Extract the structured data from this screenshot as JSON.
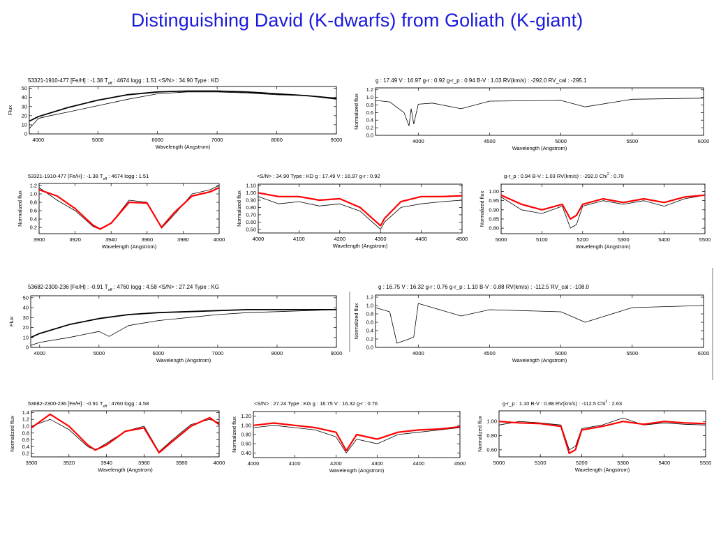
{
  "slide": {
    "title": "Distinguishing David (K-dwarfs) from Goliath (K-giant)"
  },
  "colors": {
    "title": "#1a1adc",
    "model": "#ff0000",
    "observed": "#000000"
  },
  "chart_data": [
    {
      "id": "s1-flux",
      "type": "line",
      "title": "53321-1910-477  [Fe/H] : -1.38  T",
      "title_sub": "eff",
      "title_tail": " : 4674  logg : 1.51  <S/N> : 34.90  Type : KD",
      "xlabel": "Wavelength (Angstrom)",
      "ylabel": "Flux",
      "xlim": [
        3850,
        9000
      ],
      "ylim": [
        0,
        52
      ],
      "xticks": [
        4000,
        5000,
        6000,
        7000,
        8000,
        9000
      ],
      "yticks": [
        0,
        10,
        20,
        30,
        40,
        50
      ],
      "series": [
        {
          "style": "observed",
          "x": [
            3850,
            3950,
            4000,
            4200,
            4500,
            5000,
            5500,
            6000,
            6500,
            7000,
            7500,
            8000,
            8500,
            9000
          ],
          "y": [
            6,
            13,
            17,
            20,
            24,
            31,
            38,
            44,
            46,
            46,
            45,
            43,
            42,
            38
          ]
        },
        {
          "style": "fit",
          "x": [
            3850,
            4000,
            4500,
            5000,
            5500,
            6000,
            6500,
            7000,
            7500,
            8000,
            8500,
            9000
          ],
          "y": [
            14,
            19,
            29,
            37,
            43,
            46,
            47,
            47,
            46,
            44,
            42,
            39
          ]
        }
      ]
    },
    {
      "id": "s1-norm",
      "type": "line",
      "title": "g : 17.49  V : 16.97  g-r : 0.92  g-r_p : 0.94  B-V : 1.03  RV(km/s) : -292.0  RV_cal : -295.1",
      "xlabel": "Wavelength (Angstrom)",
      "ylabel": "Normalized flux",
      "xlim": [
        3700,
        6000
      ],
      "ylim": [
        0,
        1.25
      ],
      "xticks": [
        4000,
        4500,
        5000,
        5500,
        6000
      ],
      "yticks": [
        0.0,
        0.2,
        0.4,
        0.6,
        0.8,
        1.0,
        1.2
      ],
      "series": [
        {
          "style": "observed",
          "x": [
            3700,
            3800,
            3900,
            3935,
            3950,
            3968,
            4000,
            4100,
            4300,
            4500,
            5000,
            5170,
            5500,
            6000
          ],
          "y": [
            0.92,
            0.88,
            0.6,
            0.25,
            0.7,
            0.3,
            0.82,
            0.85,
            0.7,
            0.9,
            0.92,
            0.75,
            0.95,
            0.98
          ]
        }
      ]
    },
    {
      "id": "s1-hk",
      "type": "line",
      "title": "53321-1910-477  [Fe/H] : -1.38  T",
      "title_sub": "eff",
      "title_tail": " : 4674  logg : 1.51",
      "xlabel": "Wavelength (Angstrom)",
      "ylabel": "Normalized flux",
      "xlim": [
        3900,
        4000
      ],
      "ylim": [
        0.05,
        1.25
      ],
      "xticks": [
        3900,
        3920,
        3940,
        3960,
        3980,
        4000
      ],
      "yticks": [
        0.2,
        0.4,
        0.6,
        0.8,
        1.0,
        1.2
      ],
      "series": [
        {
          "style": "observed",
          "x": [
            3900,
            3910,
            3920,
            3930,
            3934,
            3940,
            3950,
            3960,
            3968,
            3975,
            3985,
            3995,
            4000
          ],
          "y": [
            1.15,
            0.85,
            0.6,
            0.22,
            0.15,
            0.3,
            0.85,
            0.8,
            0.18,
            0.5,
            1.0,
            1.1,
            1.2
          ]
        },
        {
          "style": "model",
          "x": [
            3900,
            3910,
            3920,
            3930,
            3934,
            3940,
            3950,
            3960,
            3968,
            3975,
            3985,
            3995,
            4000
          ],
          "y": [
            1.1,
            0.95,
            0.65,
            0.25,
            0.16,
            0.3,
            0.8,
            0.78,
            0.2,
            0.55,
            0.95,
            1.05,
            1.15
          ]
        }
      ]
    },
    {
      "id": "s1-gband",
      "type": "line",
      "title": "<S/N> : 34.90  Type : KD  g : 17.49  V : 16.97  g-r : 0.92",
      "xlabel": "Wavelength (Angstrom)",
      "ylabel": "Normalized flux",
      "xlim": [
        4000,
        4500
      ],
      "ylim": [
        0.45,
        1.12
      ],
      "xticks": [
        4000,
        4100,
        4200,
        4300,
        4400,
        4500
      ],
      "yticks": [
        0.5,
        0.6,
        0.7,
        0.8,
        0.9,
        1.0,
        1.1
      ],
      "series": [
        {
          "style": "observed",
          "x": [
            4000,
            4050,
            4100,
            4150,
            4200,
            4250,
            4300,
            4310,
            4350,
            4400,
            4450,
            4500
          ],
          "y": [
            0.95,
            0.85,
            0.88,
            0.82,
            0.85,
            0.75,
            0.5,
            0.6,
            0.8,
            0.85,
            0.88,
            0.9
          ]
        },
        {
          "style": "model",
          "x": [
            4000,
            4050,
            4100,
            4150,
            4200,
            4250,
            4300,
            4310,
            4350,
            4400,
            4450,
            4500
          ],
          "y": [
            1.0,
            0.95,
            0.95,
            0.9,
            0.92,
            0.8,
            0.55,
            0.65,
            0.88,
            0.95,
            0.95,
            0.96
          ]
        }
      ]
    },
    {
      "id": "s1-mgb",
      "type": "line",
      "title": "g-r_p : 0.94  B-V : 1.03  RV(km/s) : -292.0  Chi",
      "title_sup": "2",
      "title_tail": " : 0.70",
      "xlabel": "Wavelength (Angstrom)",
      "ylabel": "Normalized flux",
      "xlim": [
        5000,
        5500
      ],
      "ylim": [
        0.77,
        1.04
      ],
      "xticks": [
        5000,
        5100,
        5200,
        5300,
        5400,
        5500
      ],
      "yticks": [
        0.8,
        0.85,
        0.9,
        0.95,
        1.0
      ],
      "series": [
        {
          "style": "observed",
          "x": [
            5000,
            5050,
            5100,
            5150,
            5170,
            5185,
            5200,
            5250,
            5300,
            5350,
            5400,
            5450,
            5500
          ],
          "y": [
            0.97,
            0.9,
            0.88,
            0.92,
            0.8,
            0.82,
            0.92,
            0.95,
            0.93,
            0.95,
            0.92,
            0.96,
            0.98
          ]
        },
        {
          "style": "model",
          "x": [
            5000,
            5050,
            5100,
            5150,
            5170,
            5185,
            5200,
            5250,
            5300,
            5350,
            5400,
            5450,
            5500
          ],
          "y": [
            0.98,
            0.93,
            0.9,
            0.93,
            0.85,
            0.87,
            0.93,
            0.96,
            0.94,
            0.96,
            0.94,
            0.97,
            0.98
          ]
        }
      ]
    },
    {
      "id": "s2-flux",
      "type": "line",
      "title": "53682-2300-236  [Fe/H] : -0.91  T",
      "title_sub": "eff",
      "title_tail": " : 4760  logg : 4.58  <S/N> : 27.24  Type : KG",
      "xlabel": "Wavelength (Angstrom)",
      "ylabel": "Flux",
      "xlim": [
        3850,
        9000
      ],
      "ylim": [
        0,
        52
      ],
      "xticks": [
        4000,
        5000,
        6000,
        7000,
        8000,
        9000
      ],
      "yticks": [
        0,
        10,
        20,
        30,
        40,
        50
      ],
      "series": [
        {
          "style": "observed",
          "x": [
            3850,
            4000,
            4500,
            5000,
            5170,
            5500,
            6000,
            6500,
            7000,
            7500,
            8000,
            8500,
            9000
          ],
          "y": [
            2,
            5,
            10,
            16,
            11,
            22,
            27,
            30,
            33,
            35,
            36,
            37,
            38
          ]
        },
        {
          "style": "fit",
          "x": [
            3850,
            4000,
            4500,
            5000,
            5500,
            6000,
            6500,
            7000,
            7500,
            8000,
            8500,
            9000
          ],
          "y": [
            10,
            14,
            23,
            29,
            33,
            35,
            36,
            37,
            38,
            38,
            38,
            38
          ]
        }
      ]
    },
    {
      "id": "s2-norm",
      "type": "line",
      "title": "g : 16.75  V : 16.32  g-r : 0.76  g-r_p : 1.10  B-V : 0.88  RV(km/s) : -112.5  RV_cal : -108.0",
      "xlabel": "Wavelength (Angstrom)",
      "ylabel": "Normalized flux",
      "xlim": [
        3700,
        6000
      ],
      "ylim": [
        0,
        1.25
      ],
      "xticks": [
        4000,
        4500,
        5000,
        5500,
        6000
      ],
      "yticks": [
        0.0,
        0.2,
        0.4,
        0.6,
        0.8,
        1.0,
        1.2
      ],
      "series": [
        {
          "style": "observed",
          "x": [
            3700,
            3800,
            3850,
            3935,
            3968,
            4000,
            4100,
            4300,
            4500,
            5000,
            5170,
            5500,
            6000
          ],
          "y": [
            0.95,
            0.85,
            0.1,
            0.2,
            0.25,
            1.05,
            0.95,
            0.75,
            0.9,
            0.85,
            0.6,
            0.95,
            1.0
          ]
        }
      ]
    },
    {
      "id": "s2-hk",
      "type": "line",
      "title": "53682-2300-236  [Fe/H] : -0.91  T",
      "title_sub": "eff",
      "title_tail": " : 4760  logg : 4.58",
      "xlabel": "Wavelength (Angstrom)",
      "ylabel": "Normalized flux",
      "xlim": [
        3900,
        4000
      ],
      "ylim": [
        0.1,
        1.45
      ],
      "xticks": [
        3900,
        3920,
        3940,
        3960,
        3980,
        4000
      ],
      "yticks": [
        0.2,
        0.4,
        0.6,
        0.8,
        1.0,
        1.2,
        1.4
      ],
      "series": [
        {
          "style": "observed",
          "x": [
            3900,
            3910,
            3920,
            3930,
            3934,
            3940,
            3950,
            3960,
            3968,
            3975,
            3985,
            3995,
            4000
          ],
          "y": [
            1.0,
            1.2,
            0.9,
            0.4,
            0.3,
            0.5,
            0.85,
            1.0,
            0.25,
            0.6,
            1.05,
            1.2,
            1.1
          ]
        },
        {
          "style": "model",
          "x": [
            3900,
            3910,
            3920,
            3930,
            3934,
            3940,
            3950,
            3960,
            3968,
            3975,
            3985,
            3995,
            4000
          ],
          "y": [
            0.95,
            1.35,
            1.0,
            0.45,
            0.3,
            0.45,
            0.85,
            0.95,
            0.22,
            0.55,
            1.0,
            1.25,
            1.05
          ]
        }
      ]
    },
    {
      "id": "s2-gband",
      "type": "line",
      "title": "<S/N> : 27.24  Type : KG  g : 16.75  V : 16.32  g-r : 0.76",
      "xlabel": "Wavelength (Angstrom)",
      "ylabel": "Normalized flux",
      "xlim": [
        4000,
        4500
      ],
      "ylim": [
        0.3,
        1.3
      ],
      "xticks": [
        4000,
        4100,
        4200,
        4300,
        4400,
        4500
      ],
      "yticks": [
        0.4,
        0.6,
        0.8,
        1.0,
        1.2
      ],
      "series": [
        {
          "style": "observed",
          "x": [
            4000,
            4050,
            4100,
            4150,
            4200,
            4225,
            4250,
            4300,
            4350,
            4400,
            4450,
            4500
          ],
          "y": [
            0.95,
            1.0,
            0.95,
            0.9,
            0.75,
            0.4,
            0.7,
            0.6,
            0.8,
            0.85,
            0.9,
            0.95
          ]
        },
        {
          "style": "model",
          "x": [
            4000,
            4050,
            4100,
            4150,
            4200,
            4225,
            4250,
            4300,
            4350,
            4400,
            4450,
            4500
          ],
          "y": [
            1.0,
            1.05,
            1.0,
            0.95,
            0.85,
            0.45,
            0.8,
            0.7,
            0.85,
            0.9,
            0.92,
            0.97
          ]
        }
      ]
    },
    {
      "id": "s2-mgb",
      "type": "line",
      "title": "g-r_p : 1.10  B-V : 0.88  RV(km/s) : -112.5  Chi",
      "title_sup": "2",
      "title_tail": " : 2.63",
      "xlabel": "Wavelength (Angstrom)",
      "ylabel": "Normalized flux",
      "xlim": [
        5000,
        5500
      ],
      "ylim": [
        0.5,
        1.15
      ],
      "xticks": [
        5000,
        5100,
        5200,
        5300,
        5400,
        5500
      ],
      "yticks": [
        0.6,
        0.8,
        1.0
      ],
      "series": [
        {
          "style": "observed",
          "x": [
            5000,
            5050,
            5100,
            5150,
            5170,
            5185,
            5200,
            5250,
            5300,
            5350,
            5400,
            5450,
            5500
          ],
          "y": [
            0.95,
            1.0,
            0.98,
            0.95,
            0.6,
            0.65,
            0.9,
            0.95,
            1.05,
            0.95,
            0.98,
            0.96,
            0.95
          ]
        },
        {
          "style": "model",
          "x": [
            5000,
            5050,
            5100,
            5150,
            5170,
            5185,
            5200,
            5250,
            5300,
            5350,
            5400,
            5450,
            5500
          ],
          "y": [
            1.0,
            0.98,
            0.97,
            0.93,
            0.55,
            0.6,
            0.88,
            0.93,
            1.0,
            0.96,
            1.0,
            0.98,
            0.97
          ]
        }
      ]
    }
  ]
}
